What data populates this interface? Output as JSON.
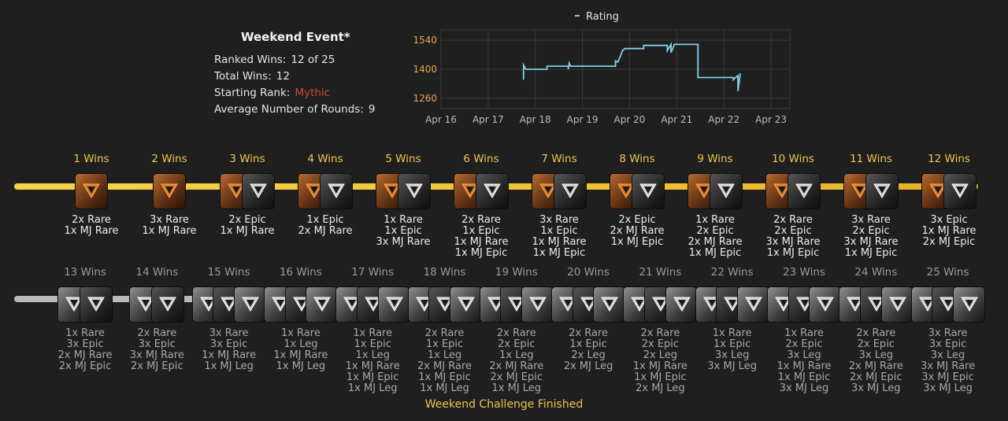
{
  "summary": {
    "title": "Weekend Event*",
    "ranked_wins_label": "Ranked Wins:",
    "ranked_wins_value": "12 of 25",
    "total_wins_label": "Total Wins:",
    "total_wins_value": "12",
    "starting_rank_label": "Starting Rank:",
    "starting_rank_value": "Mythic",
    "avg_rounds_label": "Average Number of Rounds:",
    "avg_rounds_value": "9"
  },
  "colors": {
    "gold": "#f0c64a",
    "mythic": "#c9483f",
    "line": "#7fd0ea",
    "axis_y": "#e6a84a"
  },
  "chart_data": {
    "type": "line",
    "series": [
      {
        "name": "Rating",
        "points": [
          [
            "Apr 17.75",
            1350
          ],
          [
            "Apr 17.75",
            1420
          ],
          [
            "Apr 17.8",
            1400
          ],
          [
            "Apr 18.25",
            1400
          ],
          [
            "Apr 18.25",
            1415
          ],
          [
            "Apr 18.7",
            1415
          ],
          [
            "Apr 18.7",
            1400
          ],
          [
            "Apr 18.72",
            1430
          ],
          [
            "Apr 18.75",
            1415
          ],
          [
            "Apr 19.7",
            1415
          ],
          [
            "Apr 19.7",
            1440
          ],
          [
            "Apr 19.75",
            1435
          ],
          [
            "Apr 19.8",
            1460
          ],
          [
            "Apr 19.85",
            1490
          ],
          [
            "Apr 19.9",
            1500
          ],
          [
            "Apr 20.3",
            1500
          ],
          [
            "Apr 20.3",
            1515
          ],
          [
            "Apr 20.8",
            1515
          ],
          [
            "Apr 20.8",
            1490
          ],
          [
            "Apr 20.88",
            1520
          ],
          [
            "Apr 20.88",
            1480
          ],
          [
            "Apr 20.95",
            1520
          ],
          [
            "Apr 21.45",
            1520
          ],
          [
            "Apr 21.45",
            1360
          ],
          [
            "Apr 22.2",
            1360
          ],
          [
            "Apr 22.2",
            1350
          ],
          [
            "Apr 22.3",
            1370
          ],
          [
            "Apr 22.3",
            1295
          ],
          [
            "Apr 22.35",
            1380
          ]
        ]
      }
    ],
    "x_ticks": [
      "Apr 16",
      "Apr 17",
      "Apr 18",
      "Apr 19",
      "Apr 20",
      "Apr 21",
      "Apr 22",
      "Apr 23"
    ],
    "y_ticks": [
      1260,
      1400,
      1540
    ],
    "ylim": [
      1210,
      1590
    ],
    "grid": true,
    "legend": "top-center"
  },
  "row1": [
    {
      "label": "1 Wins",
      "icons": [
        "orange"
      ],
      "rewards": [
        "2x Rare",
        "1x MJ Rare"
      ]
    },
    {
      "label": "2 Wins",
      "icons": [
        "orange"
      ],
      "rewards": [
        "3x Rare",
        "1x MJ Rare"
      ]
    },
    {
      "label": "3 Wins",
      "icons": [
        "orange",
        "dark"
      ],
      "rewards": [
        "2x Epic",
        "1x MJ Rare"
      ]
    },
    {
      "label": "4 Wins",
      "icons": [
        "orange",
        "dark"
      ],
      "rewards": [
        "1x Epic",
        "2x MJ Rare"
      ]
    },
    {
      "label": "5 Wins",
      "icons": [
        "orange",
        "dark"
      ],
      "rewards": [
        "1x Rare",
        "1x Epic",
        "3x MJ Rare"
      ]
    },
    {
      "label": "6 Wins",
      "icons": [
        "orange",
        "dark"
      ],
      "rewards": [
        "2x Rare",
        "1x Epic",
        "1x MJ Rare",
        "1x MJ Epic"
      ]
    },
    {
      "label": "7 Wins",
      "icons": [
        "orange",
        "dark"
      ],
      "rewards": [
        "3x Rare",
        "1x Epic",
        "1x MJ Rare",
        "1x MJ Epic"
      ]
    },
    {
      "label": "8 Wins",
      "icons": [
        "orange",
        "dark"
      ],
      "rewards": [
        "2x Epic",
        "2x MJ Rare",
        "1x MJ Epic"
      ]
    },
    {
      "label": "9 Wins",
      "icons": [
        "orange",
        "dark"
      ],
      "rewards": [
        "1x Rare",
        "2x Epic",
        "2x MJ Rare",
        "1x MJ Epic"
      ]
    },
    {
      "label": "10 Wins",
      "icons": [
        "orange",
        "dark"
      ],
      "rewards": [
        "2x Rare",
        "2x Epic",
        "3x MJ Rare",
        "1x MJ Epic"
      ]
    },
    {
      "label": "11 Wins",
      "icons": [
        "orange",
        "dark"
      ],
      "rewards": [
        "3x Rare",
        "2x Epic",
        "3x MJ Rare",
        "1x MJ Epic"
      ]
    },
    {
      "label": "12 Wins",
      "icons": [
        "orange",
        "dark"
      ],
      "rewards": [
        "3x Epic",
        "1x MJ Rare",
        "2x MJ Epic"
      ]
    }
  ],
  "row2": [
    {
      "label": "13 Wins",
      "icons": [
        "silver",
        "dark"
      ],
      "rewards": [
        "1x Rare",
        "3x Epic",
        "2x MJ Rare",
        "2x MJ Epic"
      ]
    },
    {
      "label": "14 Wins",
      "icons": [
        "silver",
        "dark"
      ],
      "rewards": [
        "2x Rare",
        "3x Epic",
        "3x MJ Rare",
        "2x MJ Epic"
      ]
    },
    {
      "label": "15 Wins",
      "icons": [
        "silver",
        "dark",
        "silver"
      ],
      "rewards": [
        "3x Rare",
        "3x Epic",
        "1x MJ Rare",
        "1x MJ Leg"
      ]
    },
    {
      "label": "16 Wins",
      "icons": [
        "silver",
        "dark",
        "silver"
      ],
      "rewards": [
        "1x Rare",
        "1x Leg",
        "1x MJ Rare",
        "1x MJ Leg"
      ]
    },
    {
      "label": "17 Wins",
      "icons": [
        "silver",
        "dark",
        "silver"
      ],
      "rewards": [
        "1x Rare",
        "1x Epic",
        "1x Leg",
        "1x MJ Rare",
        "1x MJ Epic",
        "1x MJ Leg"
      ]
    },
    {
      "label": "18 Wins",
      "icons": [
        "silver",
        "dark",
        "silver"
      ],
      "rewards": [
        "2x Rare",
        "1x Epic",
        "1x Leg",
        "2x MJ Rare",
        "1x MJ Epic",
        "1x MJ Leg"
      ]
    },
    {
      "label": "19 Wins",
      "icons": [
        "silver",
        "dark",
        "silver"
      ],
      "rewards": [
        "2x Rare",
        "2x Epic",
        "1x Leg",
        "2x MJ Rare",
        "2x MJ Epic",
        "1x MJ Leg"
      ]
    },
    {
      "label": "20 Wins",
      "icons": [
        "silver",
        "dark",
        "silver"
      ],
      "rewards": [
        "2x Rare",
        "1x Epic",
        "2x Leg",
        "2x MJ Leg"
      ]
    },
    {
      "label": "21 Wins",
      "icons": [
        "silver",
        "dark",
        "silver"
      ],
      "rewards": [
        "2x Rare",
        "2x Epic",
        "2x Leg",
        "1x MJ Rare",
        "1x MJ Epic",
        "2x MJ Leg"
      ]
    },
    {
      "label": "22 Wins",
      "icons": [
        "silver",
        "dark",
        "silver"
      ],
      "rewards": [
        "1x Rare",
        "1x Epic",
        "3x Leg",
        "3x MJ Leg"
      ]
    },
    {
      "label": "23 Wins",
      "icons": [
        "silver",
        "dark",
        "silver"
      ],
      "rewards": [
        "1x Rare",
        "2x Epic",
        "3x Leg",
        "1x MJ Rare",
        "1x MJ Epic",
        "3x MJ Leg"
      ]
    },
    {
      "label": "24 Wins",
      "icons": [
        "silver",
        "dark",
        "silver"
      ],
      "rewards": [
        "2x Rare",
        "2x Epic",
        "3x Leg",
        "2x MJ Rare",
        "2x MJ Epic",
        "3x MJ Leg"
      ]
    },
    {
      "label": "25 Wins",
      "icons": [
        "silver",
        "dark",
        "silver"
      ],
      "rewards": [
        "3x Rare",
        "3x Epic",
        "3x Leg",
        "3x MJ Rare",
        "3x MJ Epic",
        "3x MJ Leg"
      ]
    }
  ],
  "footer": "Weekend Challenge Finished"
}
